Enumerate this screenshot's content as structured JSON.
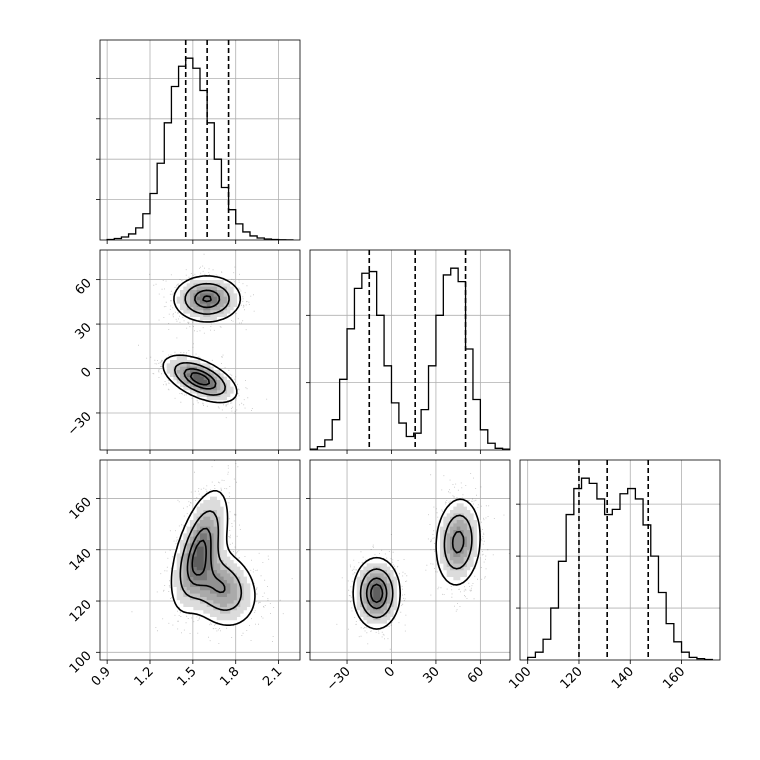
{
  "chart_data": {
    "type": "corner",
    "title": "",
    "grid": true,
    "parameters": [
      {
        "index": 0,
        "range": [
          0.85,
          2.25
        ],
        "ticks": [
          0.9,
          1.2,
          1.5,
          1.8,
          2.1
        ],
        "tick_labels": [
          "0.9",
          "1.2",
          "1.5",
          "1.8",
          "2.1"
        ],
        "quantiles": [
          1.45,
          1.6,
          1.75
        ],
        "histogram": {
          "bin_edges": [
            0.9,
            0.95,
            1.0,
            1.05,
            1.1,
            1.15,
            1.2,
            1.25,
            1.3,
            1.35,
            1.4,
            1.45,
            1.5,
            1.55,
            1.6,
            1.65,
            1.7,
            1.75,
            1.8,
            1.85,
            1.9,
            1.95,
            2.0,
            2.05,
            2.1,
            2.15,
            2.2
          ],
          "counts": [
            0.5,
            1.5,
            3,
            6,
            12,
            26,
            46,
            76,
            116,
            152,
            172,
            180,
            170,
            148,
            116,
            80,
            52,
            30,
            16,
            8,
            4,
            2,
            1,
            0.5,
            0.2,
            0.1
          ]
        }
      },
      {
        "index": 1,
        "range": [
          -55,
          80
        ],
        "ticks": [
          -30,
          0,
          30,
          60
        ],
        "tick_labels": [
          "−30",
          "0",
          "30",
          "60"
        ],
        "quantiles": [
          -15,
          16,
          50
        ],
        "histogram": {
          "bin_edges": [
            -55,
            -50,
            -45,
            -40,
            -35,
            -30,
            -25,
            -20,
            -15,
            -10,
            -5,
            0,
            5,
            10,
            15,
            20,
            25,
            30,
            35,
            40,
            45,
            50,
            55,
            60,
            65,
            70,
            75,
            80
          ],
          "counts": [
            0.5,
            2,
            6,
            18,
            42,
            72,
            96,
            105,
            106,
            80,
            50,
            28,
            16,
            8,
            10,
            24,
            50,
            80,
            104,
            108,
            100,
            60,
            30,
            12,
            4,
            1,
            0.5
          ]
        }
      },
      {
        "index": 2,
        "range": [
          97,
          175
        ],
        "ticks": [
          100,
          120,
          140,
          160
        ],
        "tick_labels": [
          "100",
          "120",
          "140",
          "160"
        ],
        "quantiles": [
          120,
          131,
          147
        ],
        "histogram": {
          "bin_edges": [
            100,
            103,
            106,
            109,
            112,
            115,
            118,
            121,
            124,
            127,
            130,
            133,
            136,
            139,
            142,
            145,
            148,
            151,
            154,
            157,
            160,
            163,
            166,
            169,
            172
          ],
          "counts": [
            1,
            3,
            8,
            20,
            38,
            56,
            66,
            70,
            68,
            62,
            56,
            58,
            64,
            66,
            62,
            52,
            40,
            26,
            14,
            7,
            3,
            1,
            0.5,
            0.2
          ]
        }
      }
    ],
    "pairs": [
      {
        "x": 0,
        "y": 1,
        "clusters": [
          {
            "mean": [
              1.6,
              47
            ],
            "sd": [
              0.12,
              8
            ],
            "rho": 0.0,
            "weight": 0.5
          },
          {
            "mean": [
              1.55,
              -7
            ],
            "sd": [
              0.13,
              8
            ],
            "rho": -0.55,
            "weight": 0.5
          }
        ]
      },
      {
        "x": 0,
        "y": 2,
        "clusters": [
          {
            "mean": [
              1.55,
              140
            ],
            "sd": [
              0.1,
              12
            ],
            "rho": 0.55,
            "weight": 0.55
          },
          {
            "mean": [
              1.7,
              125
            ],
            "sd": [
              0.13,
              8
            ],
            "rho": -0.2,
            "weight": 0.45
          }
        ]
      },
      {
        "x": 1,
        "y": 2,
        "clusters": [
          {
            "mean": [
              -10,
              123
            ],
            "sd": [
              8,
              7
            ],
            "rho": 0.0,
            "weight": 0.5
          },
          {
            "mean": [
              45,
              143
            ],
            "sd": [
              8,
              9
            ],
            "rho": 0.1,
            "weight": 0.5
          }
        ]
      }
    ]
  }
}
